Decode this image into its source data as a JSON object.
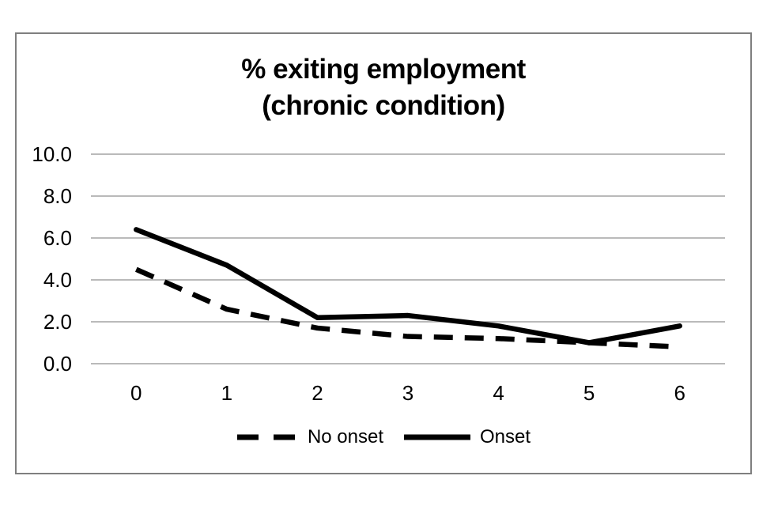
{
  "chart": {
    "title_line1": "% exiting employment",
    "title_line2": "(chronic condition)"
  },
  "chart_data": {
    "type": "line",
    "title": "% exiting employment (chronic condition)",
    "categories": [
      "0",
      "1",
      "2",
      "3",
      "4",
      "5",
      "6"
    ],
    "series": [
      {
        "name": "No onset",
        "style": "dashed",
        "color": "#000000",
        "values": [
          4.5,
          2.6,
          1.7,
          1.3,
          1.2,
          1.0,
          0.8
        ]
      },
      {
        "name": "Onset",
        "style": "solid",
        "color": "#000000",
        "values": [
          6.4,
          4.7,
          2.2,
          2.3,
          1.8,
          1.0,
          1.8
        ]
      }
    ],
    "yticks": [
      "10.0",
      "8.0",
      "6.0",
      "4.0",
      "2.0",
      "0.0"
    ],
    "ytick_values": [
      10,
      8,
      6,
      4,
      2,
      0
    ],
    "ylim": [
      0,
      10
    ],
    "xlabel": "",
    "ylabel": "",
    "grid": true,
    "legend_position": "bottom",
    "colors": {
      "series": "#000000",
      "gridline": "#a3a3a3",
      "frame_border": "#7f7f7f",
      "background": "#ffffff"
    }
  }
}
